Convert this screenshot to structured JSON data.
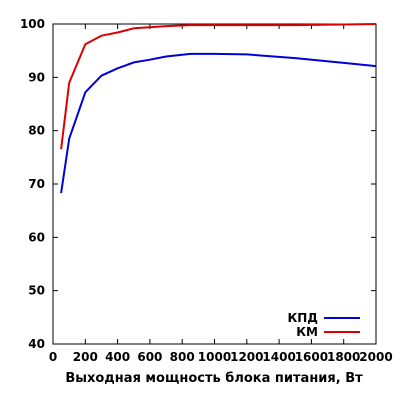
{
  "chart_data": {
    "type": "line",
    "title": "",
    "xlabel": "Выходная мощность блока питания, Вт",
    "ylabel": "",
    "xlim": [
      0,
      2000
    ],
    "ylim": [
      40,
      100
    ],
    "xticks": [
      0,
      200,
      400,
      600,
      800,
      1000,
      1200,
      1400,
      1600,
      1800,
      2000
    ],
    "yticks": [
      40,
      50,
      60,
      70,
      80,
      90,
      100
    ],
    "grid": false,
    "legend": "bottom-right",
    "series": [
      {
        "name": "КПД",
        "color": "#0000dd",
        "x": [
          50,
          100,
          200,
          300,
          400,
          500,
          600,
          700,
          850,
          1000,
          1200,
          1500,
          1800,
          2000
        ],
        "y": [
          68.3,
          78.5,
          87.2,
          90.3,
          91.7,
          92.8,
          93.3,
          93.9,
          94.4,
          94.4,
          94.3,
          93.6,
          92.7,
          92.1
        ]
      },
      {
        "name": "КМ",
        "color": "#dd0000",
        "x": [
          50,
          100,
          200,
          300,
          400,
          500,
          600,
          700,
          850,
          1000,
          1200,
          1500,
          1800,
          2000
        ],
        "y": [
          76.5,
          89.0,
          96.2,
          97.8,
          98.4,
          99.2,
          99.4,
          99.6,
          99.8,
          99.8,
          99.8,
          99.8,
          99.9,
          100.0
        ]
      }
    ]
  }
}
